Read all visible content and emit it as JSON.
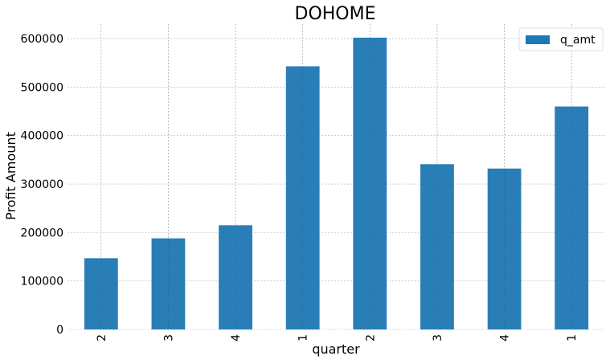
{
  "chart_data": {
    "type": "bar",
    "title": "DOHOME",
    "xlabel": "quarter",
    "ylabel": "Profit Amount",
    "categories": [
      "2",
      "3",
      "4",
      "1",
      "2",
      "3",
      "4",
      "1"
    ],
    "series": [
      {
        "name": "q_amt",
        "values": [
          147000,
          188000,
          215000,
          543000,
          602000,
          341000,
          332000,
          460000
        ]
      }
    ],
    "ylim": [
      0,
      630000
    ],
    "yticks": [
      0,
      100000,
      200000,
      300000,
      400000,
      500000,
      600000
    ],
    "ytick_labels": [
      "0",
      "100000",
      "200000",
      "300000",
      "400000",
      "500000",
      "600000"
    ],
    "grid": true,
    "legend_position": "top-right",
    "colors": {
      "bar": "#1f77b4",
      "grid": "#b0b0b0"
    }
  }
}
